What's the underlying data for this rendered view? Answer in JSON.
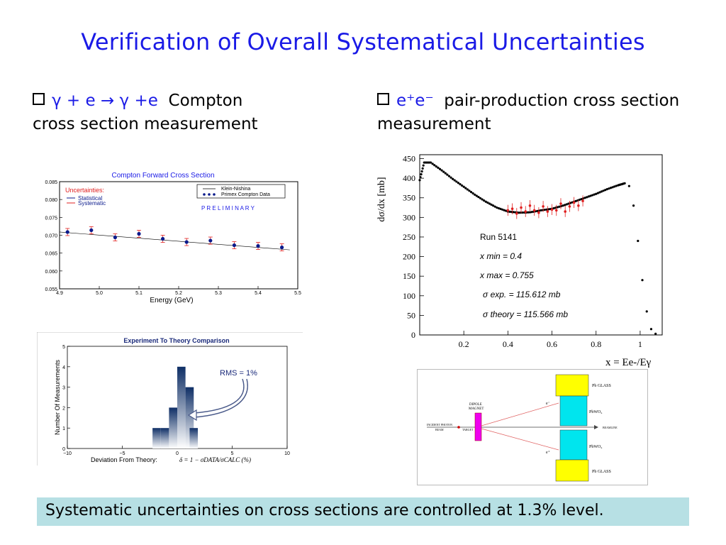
{
  "title": "Verification of Overall Systematical Uncertainties",
  "left_bullet": {
    "formula": "γ + e → γ +e",
    "text_1": "Compton",
    "text_2": "cross section measurement"
  },
  "right_bullet": {
    "formula": "e⁺e⁻",
    "text_1": "pair-production cross section",
    "text_2": "measurement"
  },
  "footer": "Systematic uncertainties on cross sections are controlled at 1.3% level.",
  "colors": {
    "title": "#1a1ae6",
    "footer_bg": "#b7e0e4",
    "data_blue": "#0a1a8c",
    "error_red": "#e02020",
    "crystal": "#00e5ee",
    "glass": "#ffff00",
    "magnet": "#ee00ee"
  },
  "chart_data": [
    {
      "type": "scatter",
      "title": "Compton Forward Cross Section",
      "xlabel": "Energy (GeV)",
      "ylabel": "",
      "xlim": [
        4.9,
        5.5
      ],
      "ylim": [
        0.055,
        0.085
      ],
      "xticks": [
        "4.9",
        "5.0",
        "5.1",
        "5.2",
        "5.3",
        "5.4",
        "5.5"
      ],
      "yticks": [
        "0.055",
        "0.060",
        "0.065",
        "0.070",
        "0.075",
        "0.080",
        "0.085"
      ],
      "uncertainties_label": "Uncertainties:",
      "uncertainty_types": [
        "Statistical",
        "Systematic"
      ],
      "legend": [
        "Klein-Nishina",
        "Primex Compton Data"
      ],
      "legend_position": "top-right",
      "annotation": "P R E L I M I N A R Y",
      "theory_line": {
        "x": [
          4.9,
          5.48
        ],
        "y": [
          0.0709,
          0.0659
        ]
      },
      "series": [
        {
          "name": "Primex Compton Data",
          "x": [
            4.92,
            4.98,
            5.04,
            5.1,
            5.16,
            5.22,
            5.28,
            5.34,
            5.4,
            5.46
          ],
          "y": [
            0.0709,
            0.0714,
            0.0694,
            0.0704,
            0.069,
            0.0681,
            0.0685,
            0.0672,
            0.067,
            0.0666
          ],
          "stat_err": [
            0.0005,
            0.0005,
            0.0005,
            0.0005,
            0.0005,
            0.0005,
            0.0005,
            0.0005,
            0.0005,
            0.0005
          ],
          "sys_err": [
            0.001,
            0.001,
            0.001,
            0.001,
            0.001,
            0.001,
            0.001,
            0.001,
            0.001,
            0.001
          ]
        }
      ]
    },
    {
      "type": "bar",
      "title": "Experiment To Theory Comparison",
      "xlabel": "Deviation From Theory:",
      "xlabel_formula": "δ = 1 − σDATA/σCALC (%)",
      "ylabel": "Number Of Measurements",
      "xlim": [
        -10,
        10
      ],
      "ylim": [
        0,
        5
      ],
      "xticks": [
        "−10",
        "−5",
        "0",
        "5",
        "10"
      ],
      "yticks": [
        "0",
        "1",
        "2",
        "3",
        "4",
        "5"
      ],
      "bins": [
        -1.5,
        -0.5,
        0.5,
        1.5
      ],
      "bin_width": 0.75,
      "bin_centers": [
        -1.125,
        -0.375,
        0.375,
        1.125
      ],
      "values": [
        1,
        2,
        4,
        3
      ],
      "extra_bin": {
        "center": 1.5,
        "value": 1
      },
      "annotation": "RMS = 1%"
    },
    {
      "type": "scatter",
      "xlabel": "x = Ee-/Eγ",
      "ylabel": "dσ/dx [mb]",
      "xlim": [
        0,
        1.1
      ],
      "ylim": [
        0,
        460
      ],
      "xticks": [
        "0.2",
        "0.4",
        "0.6",
        "0.8",
        "1"
      ],
      "yticks": [
        "0",
        "50",
        "100",
        "150",
        "200",
        "250",
        "300",
        "350",
        "400",
        "450"
      ],
      "annotations": [
        "Run 5141",
        "x min = 0.4",
        "x max = 0.755",
        "σ exp. = 115.612 mb",
        "σ theory = 115.566 mb"
      ],
      "theory_curve": {
        "x": [
          0.0,
          0.02,
          0.05,
          0.1,
          0.15,
          0.2,
          0.25,
          0.3,
          0.35,
          0.4,
          0.45,
          0.5,
          0.55,
          0.6,
          0.65,
          0.7,
          0.75,
          0.8,
          0.85,
          0.9,
          0.93,
          0.95,
          0.97,
          0.99,
          1.01,
          1.03,
          1.05,
          1.07,
          1.09
        ],
        "y": [
          395,
          440,
          440,
          420,
          398,
          378,
          358,
          340,
          325,
          315,
          312,
          313,
          318,
          322,
          330,
          340,
          350,
          360,
          372,
          382,
          387,
          380,
          330,
          240,
          140,
          60,
          15,
          3,
          1
        ]
      },
      "data_points": {
        "x": [
          0.4,
          0.42,
          0.44,
          0.46,
          0.48,
          0.5,
          0.52,
          0.54,
          0.56,
          0.58,
          0.6,
          0.62,
          0.64,
          0.66,
          0.68,
          0.7,
          0.72,
          0.74
        ],
        "y": [
          318,
          322,
          310,
          325,
          315,
          330,
          318,
          312,
          328,
          315,
          320,
          318,
          335,
          315,
          328,
          338,
          330,
          342
        ]
      }
    }
  ],
  "diagram": {
    "labels": {
      "pb_glass_top": "Pb GLASS",
      "pbwo4_top": "PbWO₄",
      "pbwo4_bottom": "PbWO₄",
      "pb_glass_bottom": "Pb GLASS",
      "dipole": "DIPOLE",
      "magnet": "MAGNET",
      "incident": "INCIDENT PHOTON",
      "beam": "BEAM",
      "target": "TARGET",
      "beamline": "BEAMLINE",
      "e_minus": "e⁻",
      "e_plus": "e⁺"
    }
  }
}
